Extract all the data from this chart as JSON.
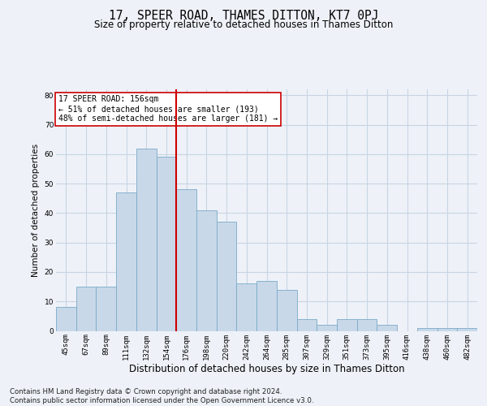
{
  "title": "17, SPEER ROAD, THAMES DITTON, KT7 0PJ",
  "subtitle": "Size of property relative to detached houses in Thames Ditton",
  "xlabel": "Distribution of detached houses by size in Thames Ditton",
  "ylabel": "Number of detached properties",
  "categories": [
    "45sqm",
    "67sqm",
    "89sqm",
    "111sqm",
    "132sqm",
    "154sqm",
    "176sqm",
    "198sqm",
    "220sqm",
    "242sqm",
    "264sqm",
    "285sqm",
    "307sqm",
    "329sqm",
    "351sqm",
    "373sqm",
    "395sqm",
    "416sqm",
    "438sqm",
    "460sqm",
    "482sqm"
  ],
  "values": [
    8,
    15,
    15,
    47,
    62,
    59,
    48,
    41,
    37,
    16,
    17,
    14,
    4,
    2,
    4,
    4,
    2,
    0,
    1,
    1,
    1
  ],
  "bar_color": "#c8d8e8",
  "bar_edge_color": "#7aaac8",
  "vline_color": "#cc0000",
  "annotation_text": "17 SPEER ROAD: 156sqm\n← 51% of detached houses are smaller (193)\n48% of semi-detached houses are larger (181) →",
  "annotation_box_color": "#ffffff",
  "annotation_box_edge": "#cc0000",
  "grid_color": "#c8d4e4",
  "background_color": "#eef2f8",
  "footnote": "Contains HM Land Registry data © Crown copyright and database right 2024.\nContains public sector information licensed under the Open Government Licence v3.0.",
  "title_fontsize": 10.5,
  "subtitle_fontsize": 8.5,
  "xlabel_fontsize": 8.5,
  "ylabel_fontsize": 7.5,
  "tick_fontsize": 6.5,
  "annot_fontsize": 7.0,
  "ylim": [
    0,
    82
  ]
}
